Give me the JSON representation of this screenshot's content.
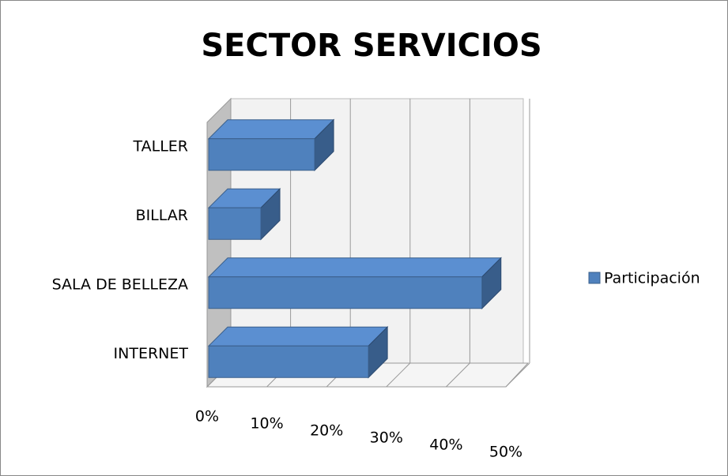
{
  "chart_data": {
    "type": "bar3d_horizontal",
    "title": "SECTOR SERVICIOS",
    "categories": [
      "TALLER",
      "BILLAR",
      "SALA DE BELLEZA",
      "INTERNET"
    ],
    "series": [
      {
        "name": "Participación",
        "color": "#4f81bd",
        "values": [
          18,
          9,
          46,
          27
        ]
      }
    ],
    "xlim": [
      0,
      50
    ],
    "xticks": [
      {
        "value": 0,
        "label": "0%"
      },
      {
        "value": 10,
        "label": "10%"
      },
      {
        "value": 20,
        "label": "20%"
      },
      {
        "value": 30,
        "label": "30%"
      },
      {
        "value": 40,
        "label": "40%"
      },
      {
        "value": 50,
        "label": "50%"
      }
    ],
    "grid": true,
    "legend": "right"
  }
}
